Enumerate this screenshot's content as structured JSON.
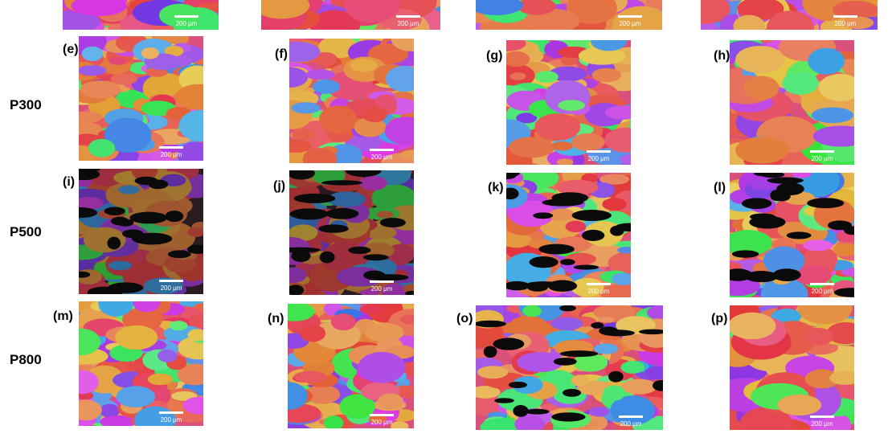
{
  "top_panels": [
    {
      "scale_bar": "200 μm"
    },
    {
      "scale_bar": "200 μm"
    },
    {
      "scale_bar": "200 μm"
    },
    {
      "scale_bar": "200 μm"
    }
  ],
  "rows": [
    {
      "label": "P300",
      "panels": [
        {
          "label": "(e)",
          "scale_bar": "200 μm"
        },
        {
          "label": "(f)",
          "scale_bar": "200 μm"
        },
        {
          "label": "(g)",
          "scale_bar": "200 μm"
        },
        {
          "label": "(h)",
          "scale_bar": "200 μm"
        }
      ]
    },
    {
      "label": "P500",
      "panels": [
        {
          "label": "(i)",
          "scale_bar": "200 μm"
        },
        {
          "label": "(j)",
          "scale_bar": "200 μm"
        },
        {
          "label": "(k)",
          "scale_bar": "200 μm"
        },
        {
          "label": "(l)",
          "scale_bar": "200 μm"
        }
      ]
    },
    {
      "label": "P800",
      "panels": [
        {
          "label": "(m)",
          "scale_bar": "200 μm"
        },
        {
          "label": "(n)",
          "scale_bar": "200 μm"
        },
        {
          "label": "(o)",
          "scale_bar": "200 μm"
        },
        {
          "label": "(p)",
          "scale_bar": "200 μm"
        }
      ]
    }
  ]
}
